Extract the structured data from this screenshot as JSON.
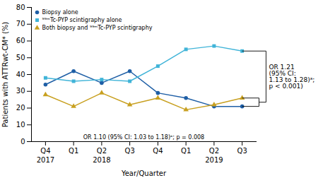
{
  "chart_data": {
    "type": "line",
    "categories": [
      "Q4",
      "Q1",
      "Q2",
      "Q3",
      "Q4",
      "Q1",
      "Q2",
      "Q3"
    ],
    "year_labels": [
      "2017",
      null,
      "2018",
      null,
      null,
      null,
      "2019",
      null
    ],
    "xlabel": "Year/Quarter",
    "ylabel": "Patients with ATTRwt-CM* (%)",
    "ylim": [
      0,
      80
    ],
    "yticks": [
      0,
      10,
      20,
      30,
      40,
      50,
      60,
      70,
      80
    ],
    "grid": false,
    "legend": "upper left",
    "series": [
      {
        "name": "Biopsy alone",
        "color": "#1f5fa6",
        "marker": "circle",
        "values": [
          34,
          42,
          35,
          42,
          29,
          26,
          21,
          21
        ]
      },
      {
        "name": "⁹⁹ᵐTc-PYP scintigraphy alone",
        "color": "#40b4d8",
        "marker": "square",
        "values": [
          38,
          36,
          37,
          36,
          45,
          55,
          57,
          54
        ]
      },
      {
        "name": "Both biopsy and ⁹⁹ᵐTc-PYP scintigraphy",
        "color": "#c8a020",
        "marker": "triangle",
        "values": [
          28,
          21,
          29,
          22,
          26,
          19,
          22,
          26
        ]
      }
    ],
    "annotations": [
      "OR 1.10 (95% CI: 1.03 to 1.18)ᵃ; p = 0.008",
      "OR 1.21\n(95% CI:\n1.13 to 1.28)ᵃ;\np < 0.001)"
    ]
  }
}
